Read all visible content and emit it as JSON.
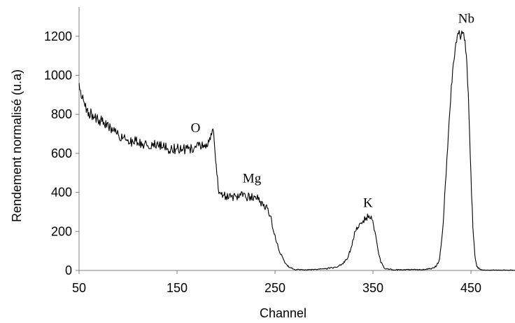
{
  "chart_data": {
    "type": "line",
    "title": "",
    "xlabel": "Channel",
    "ylabel": "Rendement normalisé (u.a)",
    "xlim": [
      50,
      495
    ],
    "ylim": [
      0,
      1350
    ],
    "x_ticks": [
      50,
      150,
      250,
      350,
      450
    ],
    "x_tick_labels": [
      "50",
      "150",
      "250",
      "350",
      "450"
    ],
    "y_ticks": [
      0,
      200,
      400,
      600,
      800,
      1000,
      1200
    ],
    "y_tick_labels": [
      "0",
      "200",
      "400",
      "600",
      "800",
      "1000",
      "1200"
    ],
    "grid": false,
    "legend": "none",
    "series_color": "#000000",
    "axis_color": "#808080",
    "annotations": [
      {
        "text": "O",
        "x": 164,
        "y": 710
      },
      {
        "text": "Mg",
        "x": 217,
        "y": 450
      },
      {
        "text": "K",
        "x": 340,
        "y": 325
      },
      {
        "text": "Nb",
        "x": 437,
        "y": 1270
      }
    ],
    "series": [
      {
        "values": [
          [
            50,
            960
          ],
          [
            53,
            880
          ],
          [
            56,
            840
          ],
          [
            60,
            810
          ],
          [
            64,
            800
          ],
          [
            68,
            785
          ],
          [
            72,
            770
          ],
          [
            76,
            745
          ],
          [
            80,
            735
          ],
          [
            85,
            715
          ],
          [
            90,
            700
          ],
          [
            95,
            680
          ],
          [
            100,
            670
          ],
          [
            105,
            660
          ],
          [
            110,
            655
          ],
          [
            115,
            650
          ],
          [
            120,
            640
          ],
          [
            125,
            638
          ],
          [
            130,
            660
          ],
          [
            135,
            630
          ],
          [
            140,
            625
          ],
          [
            145,
            620
          ],
          [
            150,
            625
          ],
          [
            155,
            620
          ],
          [
            160,
            625
          ],
          [
            165,
            630
          ],
          [
            170,
            640
          ],
          [
            175,
            630
          ],
          [
            180,
            650
          ],
          [
            184,
            670
          ],
          [
            186,
            720
          ],
          [
            188,
            660
          ],
          [
            190,
            540
          ],
          [
            192,
            420
          ],
          [
            195,
            390
          ],
          [
            200,
            380
          ],
          [
            205,
            375
          ],
          [
            210,
            380
          ],
          [
            215,
            385
          ],
          [
            220,
            375
          ],
          [
            225,
            380
          ],
          [
            230,
            380
          ],
          [
            235,
            355
          ],
          [
            238,
            330
          ],
          [
            242,
            320
          ],
          [
            245,
            280
          ],
          [
            248,
            210
          ],
          [
            252,
            140
          ],
          [
            256,
            80
          ],
          [
            260,
            40
          ],
          [
            265,
            15
          ],
          [
            270,
            5
          ],
          [
            280,
            3
          ],
          [
            290,
            5
          ],
          [
            300,
            8
          ],
          [
            310,
            15
          ],
          [
            318,
            30
          ],
          [
            324,
            60
          ],
          [
            328,
            120
          ],
          [
            332,
            200
          ],
          [
            336,
            235
          ],
          [
            340,
            255
          ],
          [
            343,
            270
          ],
          [
            346,
            280
          ],
          [
            349,
            260
          ],
          [
            352,
            200
          ],
          [
            355,
            110
          ],
          [
            358,
            40
          ],
          [
            362,
            10
          ],
          [
            370,
            4
          ],
          [
            380,
            3
          ],
          [
            390,
            5
          ],
          [
            400,
            4
          ],
          [
            410,
            10
          ],
          [
            415,
            25
          ],
          [
            418,
            60
          ],
          [
            421,
            200
          ],
          [
            424,
            450
          ],
          [
            427,
            700
          ],
          [
            430,
            950
          ],
          [
            432,
            1060
          ],
          [
            434,
            1140
          ],
          [
            436,
            1200
          ],
          [
            438,
            1230
          ],
          [
            440,
            1200
          ],
          [
            442,
            1220
          ],
          [
            444,
            1180
          ],
          [
            446,
            1050
          ],
          [
            448,
            800
          ],
          [
            450,
            500
          ],
          [
            452,
            220
          ],
          [
            454,
            80
          ],
          [
            456,
            20
          ],
          [
            460,
            4
          ],
          [
            470,
            2
          ],
          [
            480,
            2
          ],
          [
            495,
            1
          ]
        ]
      }
    ]
  }
}
